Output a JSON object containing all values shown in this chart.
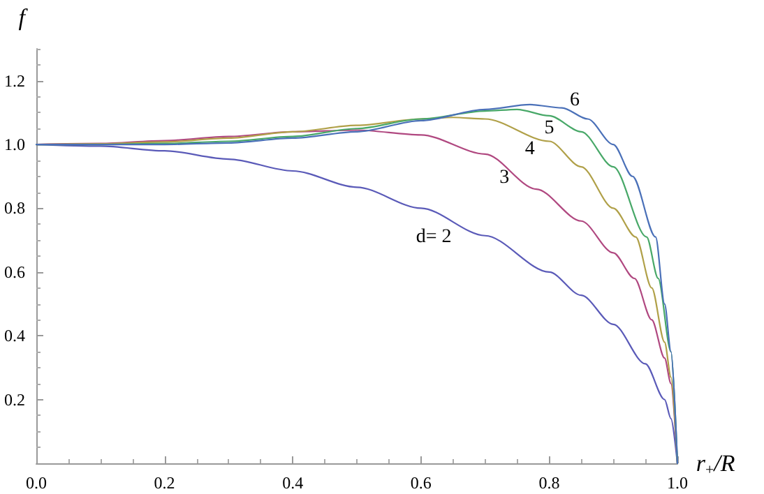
{
  "chart_data": {
    "type": "line",
    "xlabel": "r$_{+}$/R",
    "ylabel": "f",
    "xlim": [
      0,
      1
    ],
    "ylim": [
      0,
      1.3
    ],
    "xticks": [
      {
        "value": 0,
        "label": "0.0"
      },
      0.2,
      0.4,
      0.6,
      0.8,
      {
        "value": 1,
        "label": "1.0"
      }
    ],
    "yticks": [
      0.2,
      0.4,
      0.6,
      0.8,
      {
        "value": 1,
        "label": "1.0"
      },
      1.2
    ],
    "grid": false,
    "legend": false,
    "marker": "none",
    "line_style": "solid",
    "series": [
      {
        "name": "d= 2",
        "color": "#5a5ab8",
        "x": [
          0,
          0.1,
          0.2,
          0.3,
          0.4,
          0.5,
          0.6,
          0.7,
          0.8,
          0.85,
          0.9,
          0.95,
          0.98,
          0.99,
          1
        ],
        "values": [
          1,
          0.995,
          0.98,
          0.954,
          0.917,
          0.866,
          0.8,
          0.714,
          0.6,
          0.527,
          0.436,
          0.312,
          0.2,
          0.14,
          0
        ]
      },
      {
        "name": "3",
        "color": "#b04880",
        "x": [
          0,
          0.1,
          0.2,
          0.3,
          0.4,
          0.5,
          0.6,
          0.7,
          0.78,
          0.85,
          0.9,
          0.933,
          0.96,
          0.98,
          0.99,
          1
        ],
        "values": [
          1,
          1.003,
          1.012,
          1.025,
          1.04,
          1.045,
          1.03,
          0.97,
          0.86,
          0.76,
          0.66,
          0.58,
          0.45,
          0.33,
          0.25,
          0
        ]
      },
      {
        "name": "4",
        "color": "#b0a048",
        "x": [
          0,
          0.1,
          0.2,
          0.3,
          0.4,
          0.5,
          0.6,
          0.65,
          0.7,
          0.8,
          0.85,
          0.9,
          0.935,
          0.96,
          0.98,
          0.99,
          1
        ],
        "values": [
          1,
          1.002,
          1.008,
          1.02,
          1.04,
          1.06,
          1.08,
          1.085,
          1.08,
          1.01,
          0.93,
          0.8,
          0.71,
          0.55,
          0.38,
          0.27,
          0
        ]
      },
      {
        "name": "5",
        "color": "#48a868",
        "x": [
          0,
          0.1,
          0.2,
          0.3,
          0.4,
          0.5,
          0.6,
          0.7,
          0.75,
          0.8,
          0.85,
          0.9,
          0.952,
          0.97,
          0.99,
          1
        ],
        "values": [
          1,
          1,
          1.003,
          1.01,
          1.025,
          1.05,
          1.08,
          1.105,
          1.11,
          1.09,
          1.04,
          0.93,
          0.71,
          0.58,
          0.35,
          0
        ]
      },
      {
        "name": "6",
        "color": "#4a70b8",
        "x": [
          0,
          0.1,
          0.2,
          0.3,
          0.4,
          0.5,
          0.6,
          0.7,
          0.77,
          0.82,
          0.86,
          0.9,
          0.93,
          0.966,
          0.98,
          0.99,
          1
        ],
        "values": [
          1,
          1,
          1,
          1.005,
          1.02,
          1.04,
          1.075,
          1.11,
          1.125,
          1.115,
          1.08,
          1,
          0.9,
          0.71,
          0.5,
          0.35,
          0
        ]
      }
    ]
  }
}
